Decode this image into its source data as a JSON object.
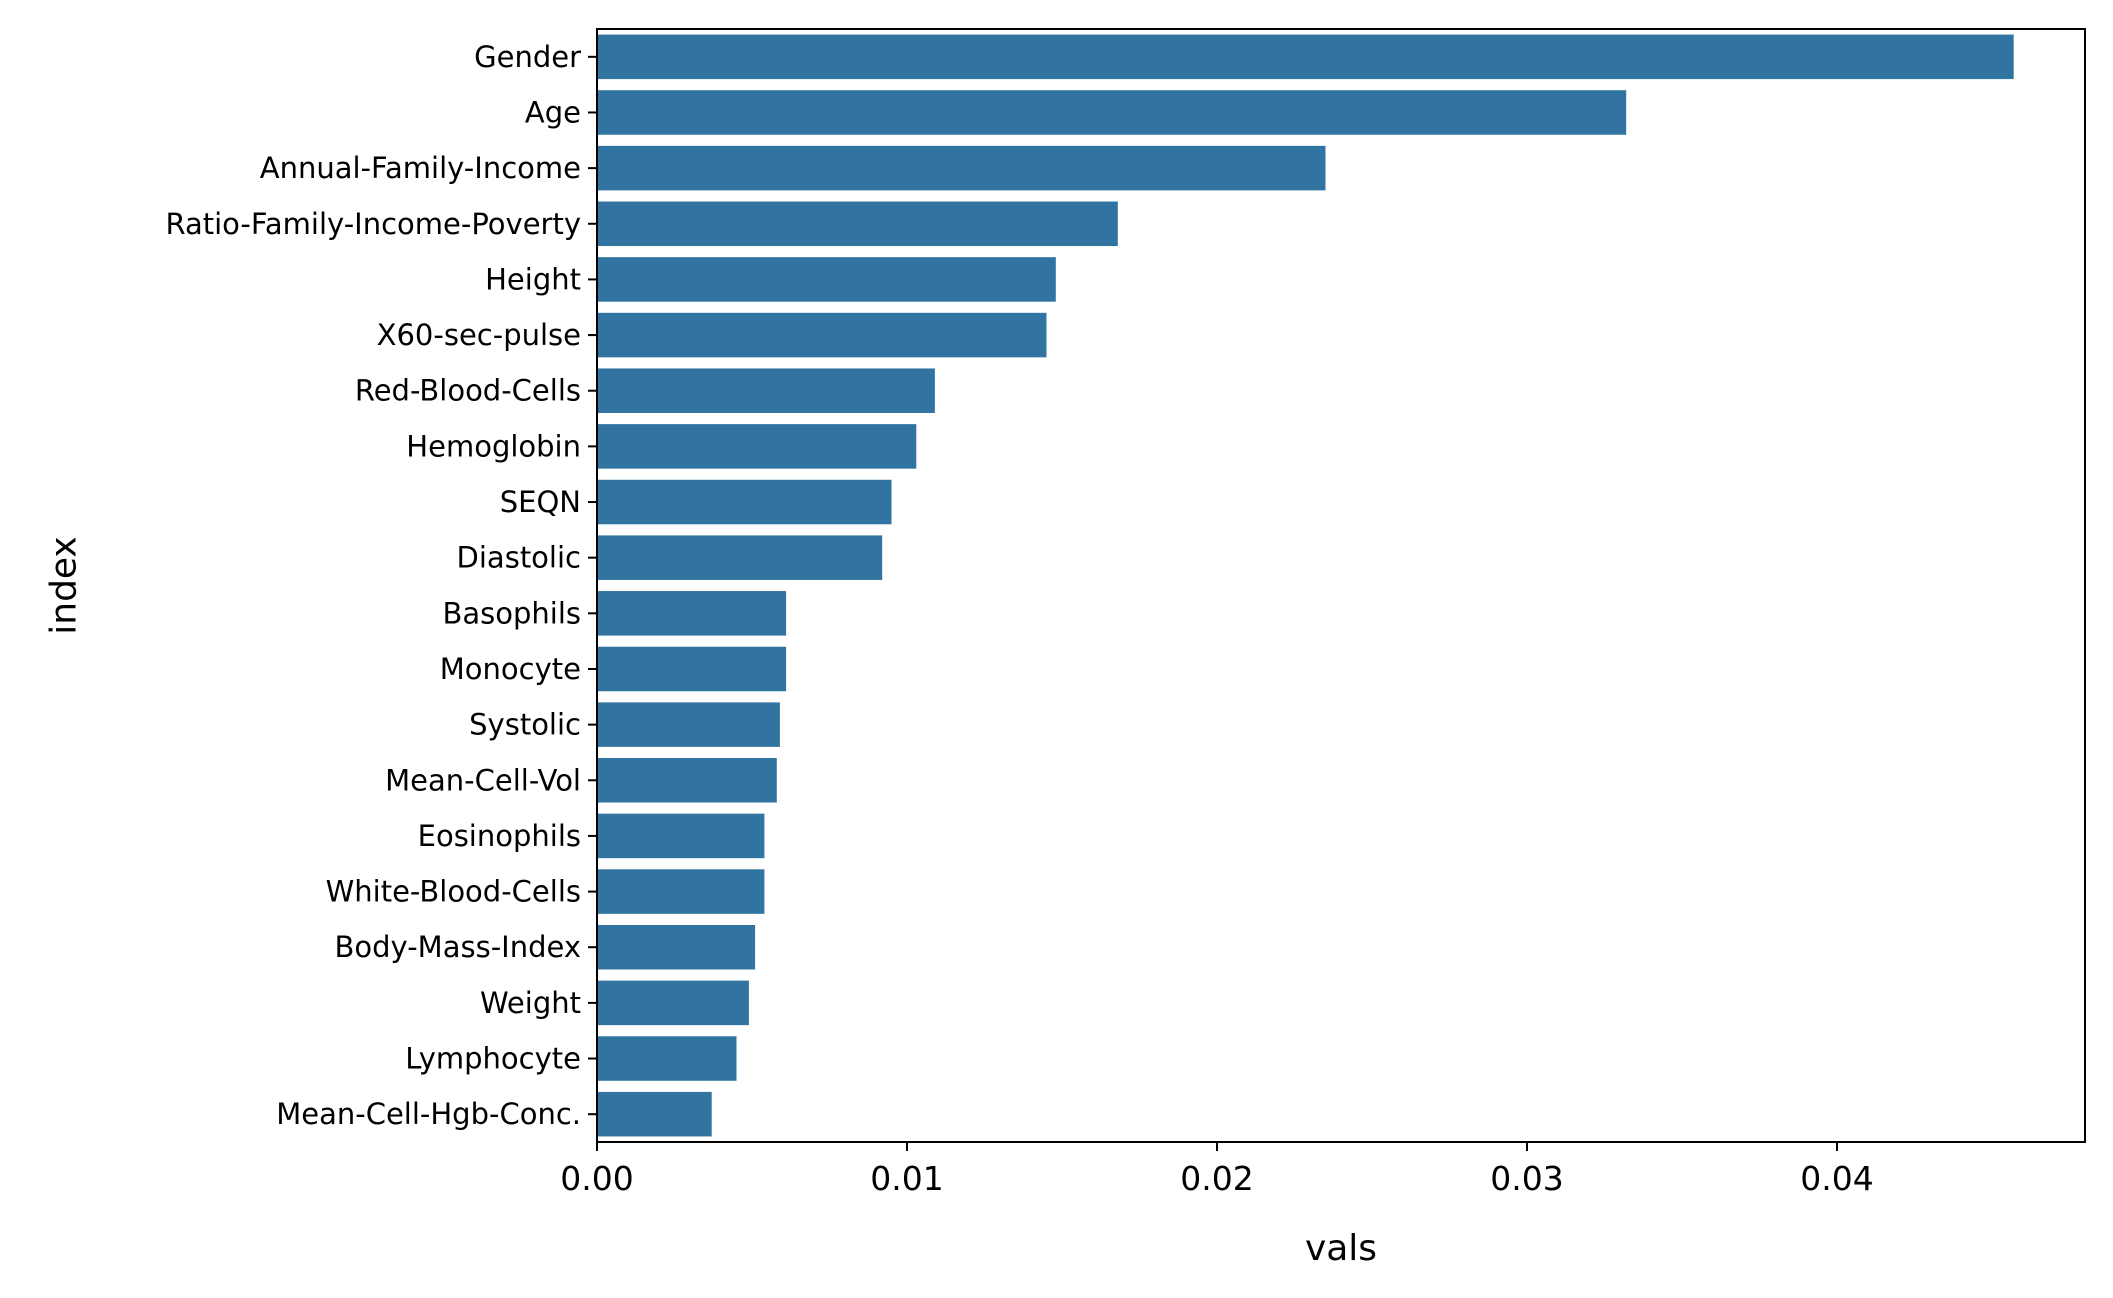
{
  "chart_data": {
    "type": "bar",
    "orientation": "horizontal",
    "xlabel": "vals",
    "ylabel": "index",
    "xlim": [
      0,
      0.048
    ],
    "xticks": [
      0.0,
      0.01,
      0.02,
      0.03,
      0.04
    ],
    "xtick_labels": [
      "0.00",
      "0.01",
      "0.02",
      "0.03",
      "0.04"
    ],
    "grid": false,
    "bar_color": "#3274a1",
    "categories": [
      "Gender",
      "Age",
      "Annual-Family-Income",
      "Ratio-Family-Income-Poverty",
      "Height",
      "X60-sec-pulse",
      "Red-Blood-Cells",
      "Hemoglobin",
      "SEQN",
      "Diastolic",
      "Basophils",
      "Monocyte",
      "Systolic",
      "Mean-Cell-Vol",
      "Eosinophils",
      "White-Blood-Cells",
      "Body-Mass-Index",
      "Weight",
      "Lymphocyte",
      "Mean-Cell-Hgb-Conc."
    ],
    "values": [
      0.0457,
      0.0332,
      0.0235,
      0.0168,
      0.0148,
      0.0145,
      0.0109,
      0.0103,
      0.0095,
      0.0092,
      0.0061,
      0.0061,
      0.0059,
      0.0058,
      0.0054,
      0.0054,
      0.0051,
      0.0049,
      0.0045,
      0.0037
    ]
  }
}
